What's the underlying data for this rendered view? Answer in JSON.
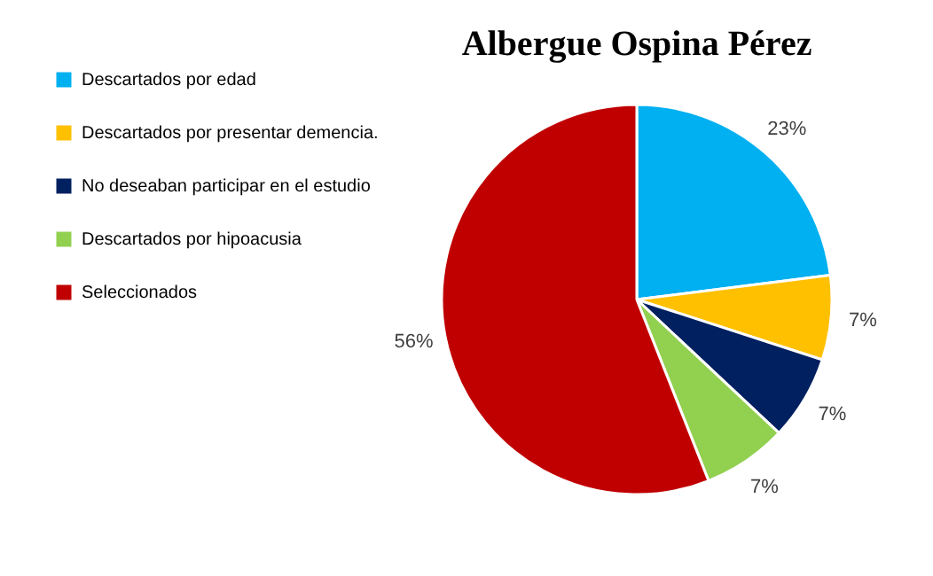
{
  "chart_data": {
    "type": "pie",
    "title": "Albergue Ospina Pérez",
    "categories": [
      "Descartados por edad",
      "Descartados por presentar demencia.",
      "No deseaban participar en el estudio",
      "Descartados por hipoacusia",
      "Seleccionados"
    ],
    "values": [
      23,
      7,
      7,
      7,
      56
    ],
    "colors": [
      "#00b0f0",
      "#ffc000",
      "#002060",
      "#92d050",
      "#c00000"
    ],
    "value_labels": [
      "23%",
      "7%",
      "7%",
      "7%",
      "56%"
    ],
    "legend": "left"
  }
}
